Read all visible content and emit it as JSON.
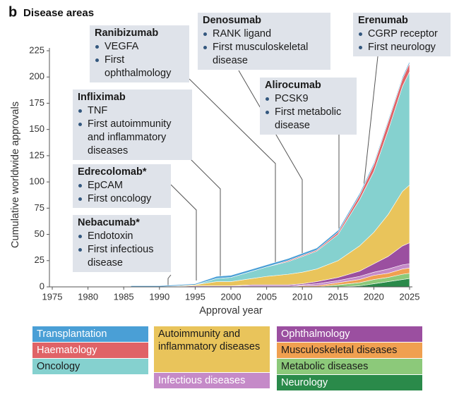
{
  "chart_data": {
    "type": "stacked_area",
    "panel_label": "b",
    "title": "Disease areas",
    "x_label": "Approval year",
    "y_label": "Cumulative worldwide approvals",
    "x": [
      1986,
      1990,
      1995,
      1998,
      2000,
      2003,
      2005,
      2008,
      2010,
      2012,
      2015,
      2018,
      2020,
      2022,
      2024,
      2025
    ],
    "xlim": [
      1975,
      2025
    ],
    "xticks": [
      1975,
      1980,
      1985,
      1990,
      1995,
      2000,
      2005,
      2010,
      2015,
      2020,
      2025
    ],
    "ylim": [
      0,
      225
    ],
    "yticks": [
      0,
      25,
      50,
      75,
      100,
      125,
      150,
      175,
      200,
      225
    ],
    "series": [
      {
        "name": "Neurology",
        "color": "#2a8a4a",
        "values": [
          0,
          0,
          0,
          0,
          0,
          0,
          0,
          0,
          0,
          0,
          0,
          1,
          3,
          5,
          7,
          8
        ]
      },
      {
        "name": "Metabolic diseases",
        "color": "#8cc97a",
        "values": [
          0,
          0,
          0,
          0,
          0,
          0,
          0,
          0,
          0,
          0,
          2,
          3,
          4,
          4,
          5,
          5
        ]
      },
      {
        "name": "Musculoskeletal diseases",
        "color": "#f0a050",
        "values": [
          0,
          0,
          0,
          0,
          0,
          0,
          0,
          0,
          1,
          1,
          2,
          3,
          4,
          4,
          5,
          5
        ]
      },
      {
        "name": "Infectious diseases",
        "color": "#c58ac8",
        "values": [
          0,
          0,
          1,
          1,
          1,
          1,
          1,
          1,
          1,
          2,
          2,
          3,
          3,
          4,
          4,
          4
        ]
      },
      {
        "name": "Ophthalmology",
        "color": "#9b4fa0",
        "values": [
          0,
          0,
          0,
          0,
          0,
          1,
          1,
          1,
          1,
          2,
          3,
          5,
          8,
          12,
          18,
          20
        ]
      },
      {
        "name": "Autoimmunity and inflammatory diseases",
        "color": "#e9c45b",
        "values": [
          0,
          0,
          1,
          4,
          4,
          6,
          8,
          10,
          11,
          12,
          16,
          24,
          30,
          40,
          52,
          55
        ]
      },
      {
        "name": "Oncology",
        "color": "#85d1cf",
        "values": [
          0,
          0,
          0,
          3,
          4,
          7,
          9,
          12,
          15,
          17,
          25,
          44,
          58,
          80,
          100,
          108
        ]
      },
      {
        "name": "Haematology",
        "color": "#e06367",
        "values": [
          0,
          0,
          0,
          0,
          0,
          0,
          0,
          1,
          1,
          1,
          2,
          4,
          6,
          8,
          7,
          8
        ]
      },
      {
        "name": "Transplantation",
        "color": "#4a9fd6",
        "values": [
          1,
          1,
          1,
          2,
          2,
          2,
          2,
          2,
          2,
          2,
          2,
          2,
          2,
          2,
          2,
          2
        ]
      }
    ],
    "annotations": [
      {
        "title": "Nebacumab*",
        "bullets": [
          "Endotoxin",
          "First infectious disease"
        ]
      },
      {
        "title": "Edrecolomab*",
        "bullets": [
          "EpCAM",
          "First oncology"
        ]
      },
      {
        "title": "Infliximab",
        "bullets": [
          "TNF",
          "First autoimmunity and inflammatory diseases"
        ]
      },
      {
        "title": "Ranibizumab",
        "bullets": [
          "VEGFA",
          "First ophthalmology"
        ]
      },
      {
        "title": "Denosumab",
        "bullets": [
          "RANK ligand",
          "First musculoskeletal disease"
        ]
      },
      {
        "title": "Alirocumab",
        "bullets": [
          "PCSK9",
          "First metabolic disease"
        ]
      },
      {
        "title": "Erenumab",
        "bullets": [
          "CGRP receptor",
          "First neurology"
        ]
      }
    ]
  }
}
